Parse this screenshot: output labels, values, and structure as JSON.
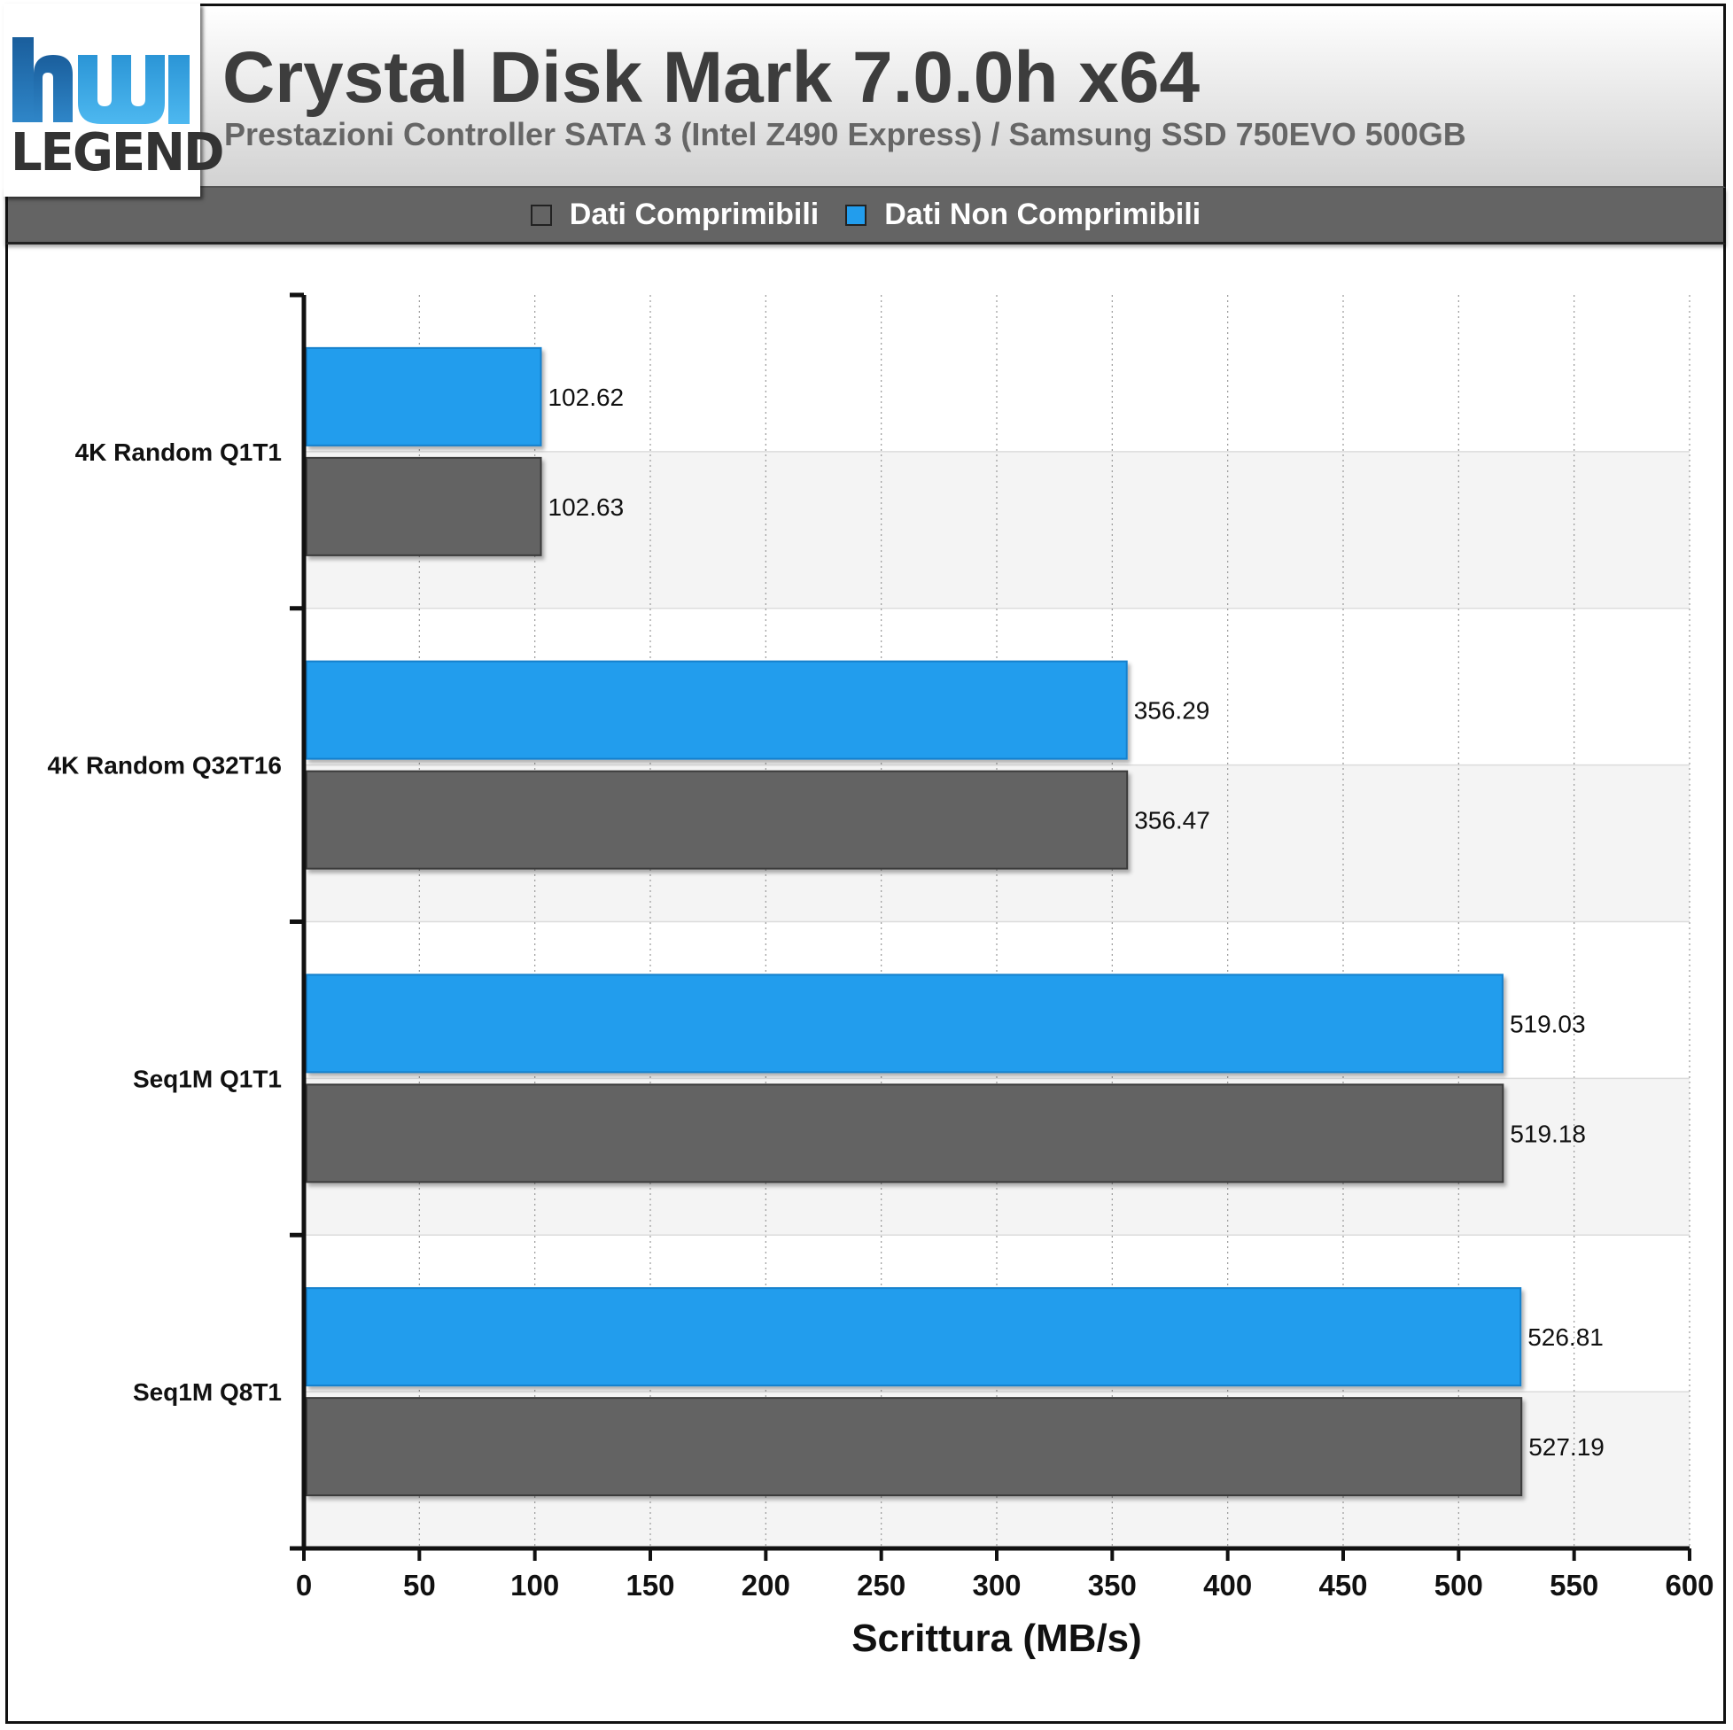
{
  "header": {
    "title": "Crystal Disk Mark 7.0.0h x64",
    "subtitle": "Prestazioni Controller SATA 3 (Intel Z490 Express) / Samsung SSD 750EVO 500GB"
  },
  "logo": {
    "icon": "hwlegend-logo-icon",
    "text": "LEGEND",
    "colors": [
      "#1f6fb2",
      "#35a8e6"
    ]
  },
  "legend": {
    "items": [
      {
        "label": "Dati Comprimibili",
        "color": "#646464"
      },
      {
        "label": "Dati Non Comprimibili",
        "color": "#229ded"
      }
    ],
    "placement": "top-center"
  },
  "chart_data": {
    "type": "bar",
    "orientation": "horizontal",
    "title": "Crystal Disk Mark 7.0.0h x64",
    "subtitle": "Prestazioni Controller SATA 3 (Intel Z490 Express) / Samsung SSD 750EVO 500GB",
    "categories": [
      "4K Random Q1T1",
      "4K Random Q32T16",
      "Seq1M Q1T1",
      "Seq1M Q8T1"
    ],
    "series": [
      {
        "name": "Dati Non Comprimibili",
        "color": "#229ded",
        "values": [
          102.62,
          356.29,
          519.03,
          526.81
        ]
      },
      {
        "name": "Dati Comprimibili",
        "color": "#646464",
        "values": [
          102.63,
          356.47,
          519.18,
          527.19
        ]
      }
    ],
    "xlabel": "Scrittura (MB/s)",
    "ylabel": "",
    "xlim": [
      0,
      600
    ],
    "xticks": [
      0,
      50,
      100,
      150,
      200,
      250,
      300,
      350,
      400,
      450,
      500,
      550,
      600
    ],
    "grid": true,
    "legend_position": "top-center"
  }
}
